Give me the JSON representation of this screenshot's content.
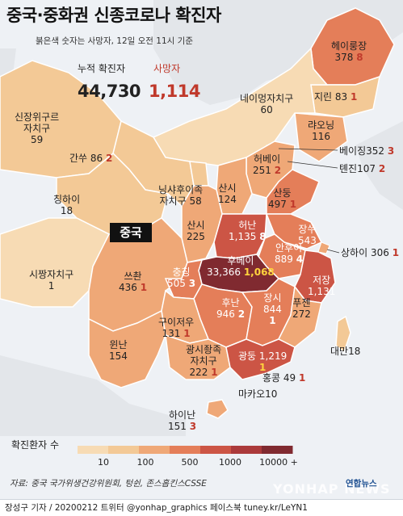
{
  "title": "중국·중화권 신종코로나 확진자",
  "subtitle": "붉은색 숫자는 사망자, 12일 오전 11시 기준",
  "totals": {
    "cases_label": "누적 확진자",
    "cases_value": "44,730",
    "deaths_label": "사망자",
    "deaths_value": "1,114"
  },
  "country_label": "중국",
  "regions": {
    "heilongjiang": {
      "name": "헤이룽장",
      "cases": "378",
      "deaths": "8"
    },
    "jilin": {
      "name": "지린",
      "cases": "83",
      "deaths": "1"
    },
    "liaoning": {
      "name": "랴오닝",
      "cases": "116"
    },
    "inner_mongolia": {
      "name": "네이멍자치구",
      "cases": "60"
    },
    "beijing": {
      "name": "베이징",
      "cases": "352",
      "deaths": "3"
    },
    "tianjin": {
      "name": "톈진",
      "cases": "107",
      "deaths": "2"
    },
    "hebei": {
      "name": "허베이",
      "cases": "251",
      "deaths": "2"
    },
    "shandong": {
      "name": "산둥",
      "cases": "497",
      "deaths": "1"
    },
    "shanxi": {
      "name": "산시",
      "cases": "124"
    },
    "xinjiang": {
      "name": "신장위구르자치구",
      "name_line1": "신장위구르",
      "name_line2": "자치구",
      "cases": "59"
    },
    "gansu": {
      "name": "간쑤",
      "cases": "86",
      "deaths": "2"
    },
    "ningxia": {
      "name": "닝샤후이족자치구",
      "name_line1": "닝샤후이족",
      "name_line2": "자치구",
      "cases": "58"
    },
    "qinghai": {
      "name": "칭하이",
      "cases": "18"
    },
    "shaanxi": {
      "name": "산시",
      "cases": "225"
    },
    "henan": {
      "name": "허난",
      "cases": "1,135",
      "deaths": "8"
    },
    "jiangsu": {
      "name": "장쑤",
      "cases": "543"
    },
    "anhui": {
      "name": "안후이",
      "cases": "889",
      "deaths": "4"
    },
    "shanghai": {
      "name": "상하이",
      "cases": "306",
      "deaths": "1"
    },
    "hubei": {
      "name": "후베이",
      "cases": "33,366",
      "deaths": "1,068"
    },
    "tibet": {
      "name": "시짱자치구",
      "cases": "1"
    },
    "sichuan": {
      "name": "쓰촨",
      "cases": "436",
      "deaths": "1"
    },
    "chongqing": {
      "name": "충칭",
      "cases": "505",
      "deaths": "3"
    },
    "zhejiang": {
      "name": "저장",
      "cases": "1,131"
    },
    "hunan": {
      "name": "후난",
      "cases": "946",
      "deaths": "2"
    },
    "jiangxi": {
      "name": "장시",
      "cases": "844",
      "deaths": "1"
    },
    "guizhou": {
      "name": "구이저우",
      "cases": "131",
      "deaths": "1"
    },
    "fujian": {
      "name": "푸젠",
      "cases": "272"
    },
    "yunnan": {
      "name": "윈난",
      "cases": "154"
    },
    "guangxi": {
      "name": "광시좡족자치구",
      "name_line1": "광시좡족",
      "name_line2": "자치구",
      "cases": "222",
      "deaths": "1"
    },
    "guangdong": {
      "name": "광둥",
      "cases": "1,219",
      "deaths": "1"
    },
    "taiwan": {
      "name": "대만",
      "cases": "18"
    },
    "hongkong": {
      "name": "홍콩",
      "cases": "49",
      "deaths": "1"
    },
    "macau": {
      "name": "마카오",
      "cases": "10"
    },
    "hainan": {
      "name": "하이난",
      "cases": "151",
      "deaths": "3"
    }
  },
  "legend": {
    "title": "확진환자 수",
    "ticks": [
      "10",
      "100",
      "500",
      "1000",
      "10000 +"
    ],
    "colors": [
      "#f7dbb4",
      "#f3c996",
      "#efa877",
      "#e47e59",
      "#cc5545",
      "#ab3a3b",
      "#802a30"
    ]
  },
  "colors": {
    "background": "#eef1f5",
    "neighbor": "#e3e6ea",
    "border": "#ffffff",
    "death_text": "#c0392b",
    "hubei_death_text": "#ffd33d"
  },
  "source": "자료: 중국 국가위생건강위원회, 텅쉰, 존스홉킨스CSSE",
  "footer": "장성구 기자 / 20200212 트위터 @yonhap_graphics 페이스북 tuney.kr/LeYN1",
  "agency_logo": "연합뉴스",
  "watermark": "YONHAP NEWS"
}
